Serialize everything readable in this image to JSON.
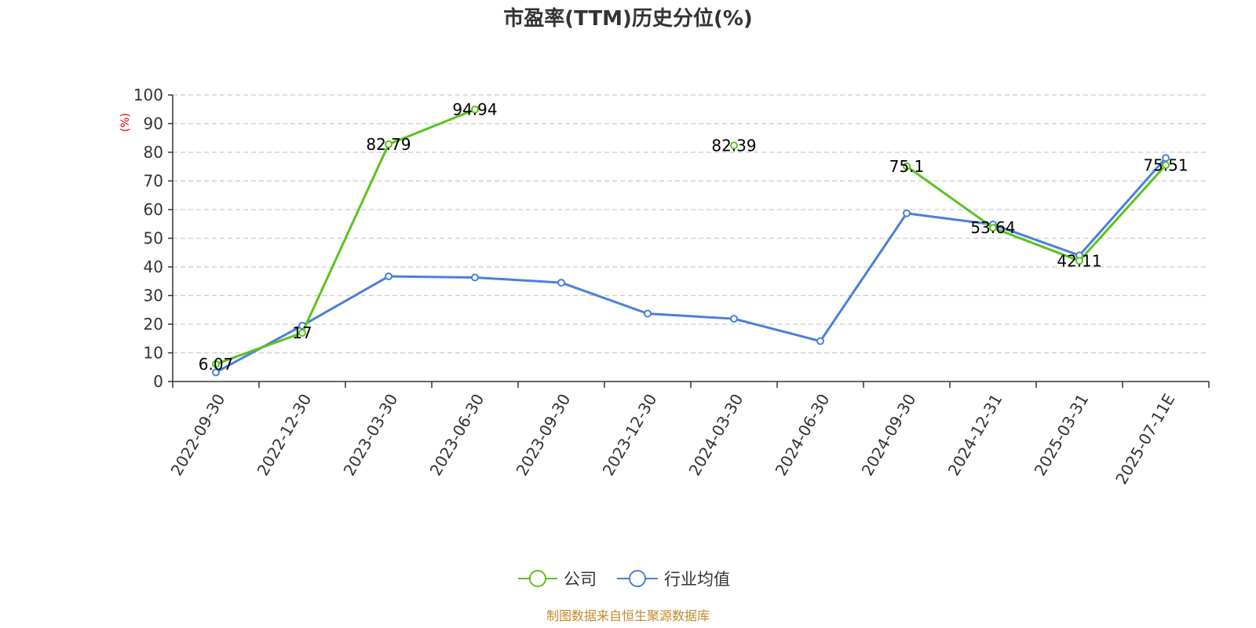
{
  "chart_data": {
    "type": "line",
    "title": "市盈率(TTM)历史分位(%)",
    "ylabel": "(%)",
    "xlabel": "",
    "ylim": [
      0,
      100
    ],
    "yticks": [
      0,
      10,
      20,
      30,
      40,
      50,
      60,
      70,
      80,
      90,
      100
    ],
    "grid": true,
    "legend_position": "bottom-center",
    "categories": [
      "2022-09-30",
      "2022-12-30",
      "2023-03-30",
      "2023-06-30",
      "2023-09-30",
      "2023-12-30",
      "2024-03-30",
      "2024-06-30",
      "2024-09-30",
      "2024-12-31",
      "2025-03-31",
      "2025-07-11E"
    ],
    "series": [
      {
        "name": "公司",
        "color": "#5ac31e",
        "values": [
          6.07,
          17,
          82.79,
          94.94,
          null,
          null,
          82.39,
          null,
          75.1,
          53.64,
          42.11,
          75.51
        ],
        "labels": [
          "6.07",
          "17",
          "82.79",
          "94.94",
          null,
          null,
          "82.39",
          null,
          "75.1",
          "53.64",
          "42.11",
          "75.51"
        ]
      },
      {
        "name": "行业均值",
        "color": "#4a7fdb",
        "values": [
          3.2,
          19.5,
          36.7,
          36.3,
          34.5,
          23.7,
          21.9,
          14.1,
          58.7,
          54.8,
          44.0,
          78.0
        ]
      }
    ],
    "source": "制图数据来自恒生聚源数据库"
  }
}
